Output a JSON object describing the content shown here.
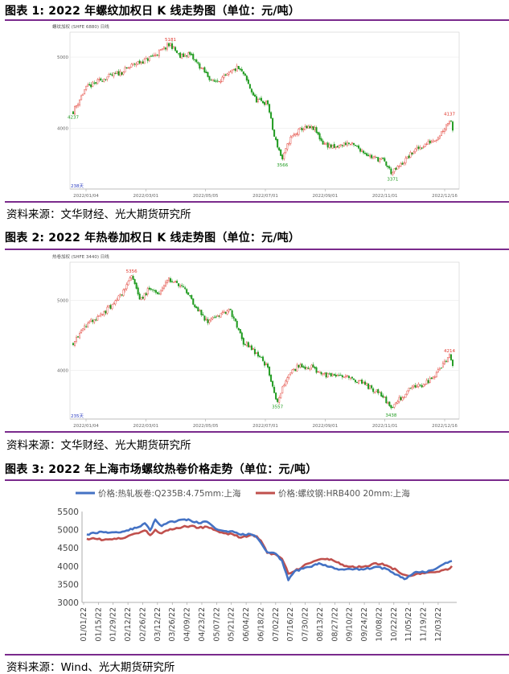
{
  "figures": [
    {
      "title": "图表 1: 2022 年螺纹加权日 K 线走势图（单位：元/吨）",
      "source": "资料来源：文华财经、光大期货研究所",
      "chart_data": {
        "type": "candlestick",
        "header": "螺纹加权 (SHFE 6880)  日线",
        "yticks": [
          4000,
          5000
        ],
        "ylim": [
          3150,
          5350
        ],
        "xticks": [
          "2022/01/04",
          "2022/03/01",
          "2022/05/05",
          "2022/07/01",
          "2022/09/01",
          "2022/11/01",
          "2022/12/16"
        ],
        "annotations": [
          {
            "label": "4237",
            "value": 4237,
            "date": "2022/01/04"
          },
          {
            "label": "5181",
            "value": 5181,
            "date": "2022/04"
          },
          {
            "label": "3566",
            "value": 3566,
            "date": "2022/07/14"
          },
          {
            "label": "3371",
            "value": 3371,
            "date": "2022/11/01"
          },
          {
            "label": "4137",
            "value": 4137,
            "date": "2022/12/16"
          }
        ],
        "corner_label": "238天",
        "keypoints": [
          [
            0,
            4237
          ],
          [
            10,
            4560
          ],
          [
            25,
            4700
          ],
          [
            40,
            4790
          ],
          [
            50,
            4900
          ],
          [
            60,
            4960
          ],
          [
            70,
            5060
          ],
          [
            80,
            5181
          ],
          [
            88,
            5000
          ],
          [
            95,
            5050
          ],
          [
            105,
            4850
          ],
          [
            115,
            4650
          ],
          [
            125,
            4720
          ],
          [
            135,
            4850
          ],
          [
            140,
            4760
          ],
          [
            150,
            4400
          ],
          [
            160,
            4350
          ],
          [
            165,
            3900
          ],
          [
            172,
            3566
          ],
          [
            178,
            3850
          ],
          [
            188,
            4000
          ],
          [
            198,
            4000
          ],
          [
            205,
            3800
          ],
          [
            215,
            3720
          ],
          [
            225,
            3800
          ],
          [
            235,
            3720
          ],
          [
            245,
            3600
          ],
          [
            255,
            3550
          ],
          [
            262,
            3371
          ],
          [
            270,
            3500
          ],
          [
            280,
            3680
          ],
          [
            290,
            3780
          ],
          [
            300,
            3880
          ],
          [
            310,
            4137
          ],
          [
            312,
            4000
          ]
        ]
      }
    },
    {
      "title": "图表 2: 2022 年热卷加权日 K 线走势图（单位：元/吨）",
      "source": "资料来源：文华财经、光大期货研究所",
      "chart_data": {
        "type": "candlestick",
        "header": "热卷加权 (SHFE 3440)  日线",
        "yticks": [
          4000,
          5000
        ],
        "ylim": [
          3300,
          5550
        ],
        "xticks": [
          "2022/01/04",
          "2022/03/01",
          "2022/05/05",
          "2022/07/01",
          "2022/09/01",
          "2022/11/01",
          "2022/12/16"
        ],
        "annotations": [
          {
            "label": "5356",
            "value": 5356,
            "date": "2022/03"
          },
          {
            "label": "3557",
            "value": 3557,
            "date": "2022/07/14"
          },
          {
            "label": "3438",
            "value": 3438,
            "date": "2022/11/01"
          },
          {
            "label": "4214",
            "value": 4214,
            "date": "2022/12/16"
          }
        ],
        "corner_label": "235天",
        "keypoints": [
          [
            0,
            4400
          ],
          [
            10,
            4650
          ],
          [
            20,
            4750
          ],
          [
            30,
            4900
          ],
          [
            40,
            5100
          ],
          [
            48,
            5356
          ],
          [
            55,
            5000
          ],
          [
            62,
            5150
          ],
          [
            70,
            5100
          ],
          [
            78,
            5300
          ],
          [
            85,
            5250
          ],
          [
            92,
            5150
          ],
          [
            100,
            4950
          ],
          [
            110,
            4700
          ],
          [
            120,
            4800
          ],
          [
            130,
            4850
          ],
          [
            140,
            4400
          ],
          [
            148,
            4300
          ],
          [
            160,
            4050
          ],
          [
            168,
            3557
          ],
          [
            176,
            3900
          ],
          [
            185,
            4050
          ],
          [
            196,
            4050
          ],
          [
            205,
            3950
          ],
          [
            215,
            3900
          ],
          [
            225,
            3900
          ],
          [
            235,
            3850
          ],
          [
            245,
            3750
          ],
          [
            255,
            3650
          ],
          [
            262,
            3438
          ],
          [
            270,
            3600
          ],
          [
            280,
            3760
          ],
          [
            290,
            3800
          ],
          [
            300,
            3950
          ],
          [
            310,
            4214
          ],
          [
            313,
            4050
          ]
        ]
      }
    },
    {
      "title": "图表 3: 2022 年上海市场螺纹热卷价格走势（单位：元/吨）",
      "source": "资料来源：Wind、光大期货研究所",
      "chart_data": {
        "type": "line",
        "yticks": [
          3000,
          3500,
          4000,
          4500,
          5000,
          5500
        ],
        "ylim": [
          3000,
          5500
        ],
        "xticks": [
          "01/01/22",
          "01/15/22",
          "01/29/22",
          "02/12/22",
          "02/26/22",
          "03/12/22",
          "03/26/22",
          "04/09/22",
          "04/23/22",
          "05/07/22",
          "05/21/22",
          "06/04/22",
          "06/18/22",
          "07/02/22",
          "07/16/22",
          "07/30/22",
          "08/13/22",
          "08/27/22",
          "09/10/22",
          "09/24/22",
          "10/08/22",
          "10/22/22",
          "11/05/22",
          "11/19/22",
          "12/03/22"
        ],
        "x_start": "2022-01-01",
        "x_end": "2022-12-16",
        "series": [
          {
            "name": "价格:热轧板卷:Q235B:4.75mm:上海",
            "color": "#4472c4",
            "points": [
              [
                "2022-01-04",
                4870
              ],
              [
                "2022-01-10",
                4920
              ],
              [
                "2022-01-20",
                4930
              ],
              [
                "2022-02-07",
                4950
              ],
              [
                "2022-02-20",
                5050
              ],
              [
                "2022-02-28",
                5180
              ],
              [
                "2022-03-05",
                4980
              ],
              [
                "2022-03-10",
                5280
              ],
              [
                "2022-03-16",
                5100
              ],
              [
                "2022-03-22",
                5200
              ],
              [
                "2022-03-28",
                5210
              ],
              [
                "2022-04-05",
                5280
              ],
              [
                "2022-04-12",
                5260
              ],
              [
                "2022-04-20",
                5180
              ],
              [
                "2022-04-28",
                5220
              ],
              [
                "2022-05-08",
                5000
              ],
              [
                "2022-05-16",
                4960
              ],
              [
                "2022-05-22",
                4960
              ],
              [
                "2022-05-30",
                4860
              ],
              [
                "2022-06-08",
                4880
              ],
              [
                "2022-06-14",
                4790
              ],
              [
                "2022-06-18",
                4640
              ],
              [
                "2022-06-24",
                4380
              ],
              [
                "2022-07-02",
                4340
              ],
              [
                "2022-07-08",
                4150
              ],
              [
                "2022-07-14",
                3610
              ],
              [
                "2022-07-20",
                3860
              ],
              [
                "2022-07-28",
                3930
              ],
              [
                "2022-08-05",
                3980
              ],
              [
                "2022-08-12",
                4080
              ],
              [
                "2022-08-20",
                3990
              ],
              [
                "2022-08-27",
                3930
              ],
              [
                "2022-09-05",
                3900
              ],
              [
                "2022-09-15",
                3920
              ],
              [
                "2022-09-25",
                3920
              ],
              [
                "2022-10-05",
                3980
              ],
              [
                "2022-10-15",
                3920
              ],
              [
                "2022-10-25",
                3760
              ],
              [
                "2022-11-01",
                3640
              ],
              [
                "2022-11-05",
                3720
              ],
              [
                "2022-11-12",
                3840
              ],
              [
                "2022-11-20",
                3830
              ],
              [
                "2022-11-28",
                3890
              ],
              [
                "2022-12-06",
                4020
              ],
              [
                "2022-12-12",
                4090
              ],
              [
                "2022-12-16",
                4140
              ]
            ]
          },
          {
            "name": "价格:螺纹钢:HRB400 20mm:上海",
            "color": "#c0504d",
            "points": [
              [
                "2022-01-04",
                4750
              ],
              [
                "2022-01-10",
                4770
              ],
              [
                "2022-01-20",
                4720
              ],
              [
                "2022-02-07",
                4760
              ],
              [
                "2022-02-20",
                4900
              ],
              [
                "2022-02-28",
                4980
              ],
              [
                "2022-03-05",
                4850
              ],
              [
                "2022-03-10",
                5000
              ],
              [
                "2022-03-16",
                4900
              ],
              [
                "2022-03-22",
                4980
              ],
              [
                "2022-03-28",
                5020
              ],
              [
                "2022-04-05",
                5080
              ],
              [
                "2022-04-12",
                5100
              ],
              [
                "2022-04-20",
                5050
              ],
              [
                "2022-04-28",
                5080
              ],
              [
                "2022-05-08",
                4960
              ],
              [
                "2022-05-16",
                4900
              ],
              [
                "2022-05-22",
                4880
              ],
              [
                "2022-05-30",
                4780
              ],
              [
                "2022-06-08",
                4850
              ],
              [
                "2022-06-14",
                4820
              ],
              [
                "2022-06-18",
                4700
              ],
              [
                "2022-06-24",
                4360
              ],
              [
                "2022-07-02",
                4320
              ],
              [
                "2022-07-08",
                4200
              ],
              [
                "2022-07-14",
                3790
              ],
              [
                "2022-07-20",
                3860
              ],
              [
                "2022-07-28",
                4000
              ],
              [
                "2022-08-05",
                4100
              ],
              [
                "2022-08-12",
                4180
              ],
              [
                "2022-08-20",
                4200
              ],
              [
                "2022-08-27",
                4130
              ],
              [
                "2022-09-05",
                4000
              ],
              [
                "2022-09-15",
                3960
              ],
              [
                "2022-09-25",
                4000
              ],
              [
                "2022-10-05",
                4080
              ],
              [
                "2022-10-15",
                4020
              ],
              [
                "2022-10-25",
                3880
              ],
              [
                "2022-11-01",
                3760
              ],
              [
                "2022-11-05",
                3730
              ],
              [
                "2022-11-12",
                3780
              ],
              [
                "2022-11-20",
                3800
              ],
              [
                "2022-11-28",
                3830
              ],
              [
                "2022-12-06",
                3880
              ],
              [
                "2022-12-12",
                3900
              ],
              [
                "2022-12-16",
                4000
              ]
            ]
          }
        ]
      }
    }
  ]
}
